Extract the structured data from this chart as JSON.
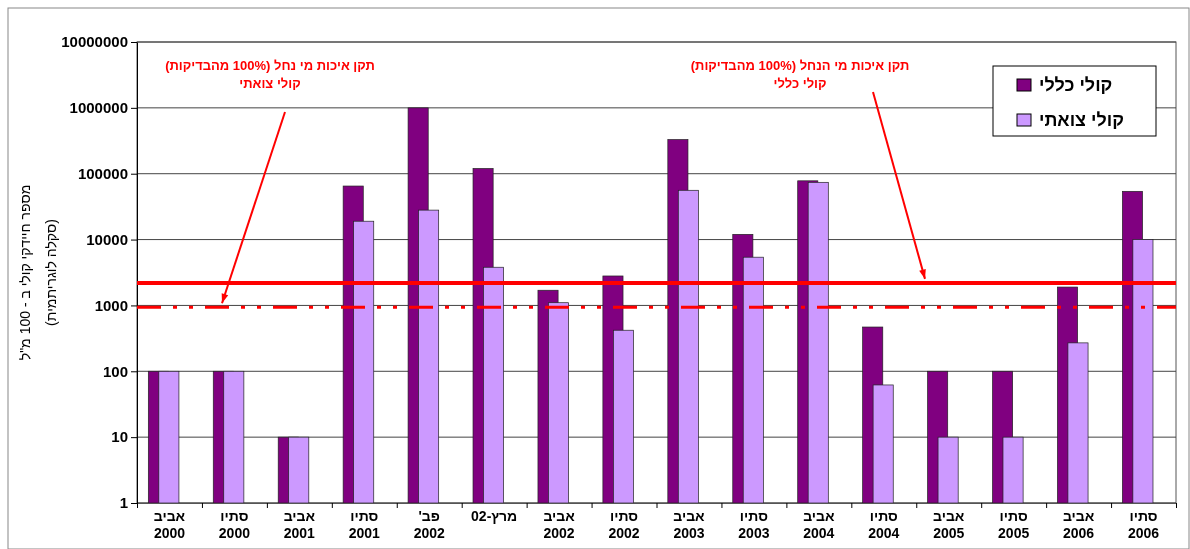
{
  "chart_data": {
    "type": "bar",
    "ylabel": "מספר חיידקי קולי ב - 100 מ\"ל\n(סקלה לוגריתמית)",
    "categories": [
      "אביב 2000",
      "סתיו 2000",
      "אביב 2001",
      "סתיו 2001",
      "פב' 2002",
      "מרץ-02",
      "אביב 2002",
      "סתיו 2002",
      "אביב 2003",
      "סתיו 2003",
      "אביב 2004",
      "סתיו 2004",
      "אביב 2005",
      "סתיו 2005",
      "אביב 2006",
      "סתיו 2006"
    ],
    "series": [
      {
        "name": "קולי כללי",
        "color": "#800080",
        "values": [
          100,
          100,
          10,
          65000,
          1000000,
          120000,
          1700,
          2800,
          330000,
          12000,
          78000,
          470,
          100,
          100,
          1900,
          54000
        ]
      },
      {
        "name": "קולי צואתי",
        "color": "#cc99ff",
        "values": [
          100,
          100,
          10,
          19000,
          28000,
          3800,
          1100,
          420,
          56000,
          5400,
          74000,
          62,
          10,
          10,
          270,
          10000
        ]
      }
    ],
    "log": true,
    "ylim": [
      1,
      10000000
    ],
    "yticks": [
      1,
      10,
      100,
      1000,
      10000,
      100000,
      1000000,
      10000000
    ],
    "grid": "y",
    "legend": "top right",
    "ref_lines": [
      {
        "axis": "y",
        "value": 940,
        "label": "תקן איכות מי נחל (100% מהבדיקות)\nקולי צואתי",
        "color": "#ff0000",
        "line_style": "dashdot"
      },
      {
        "axis": "y",
        "value": 2200,
        "label": "תקן איכות מי הנחל (100% מהבדיקות)\nקולי כללי",
        "color": "#ff0000",
        "line_style": "solid"
      }
    ]
  }
}
